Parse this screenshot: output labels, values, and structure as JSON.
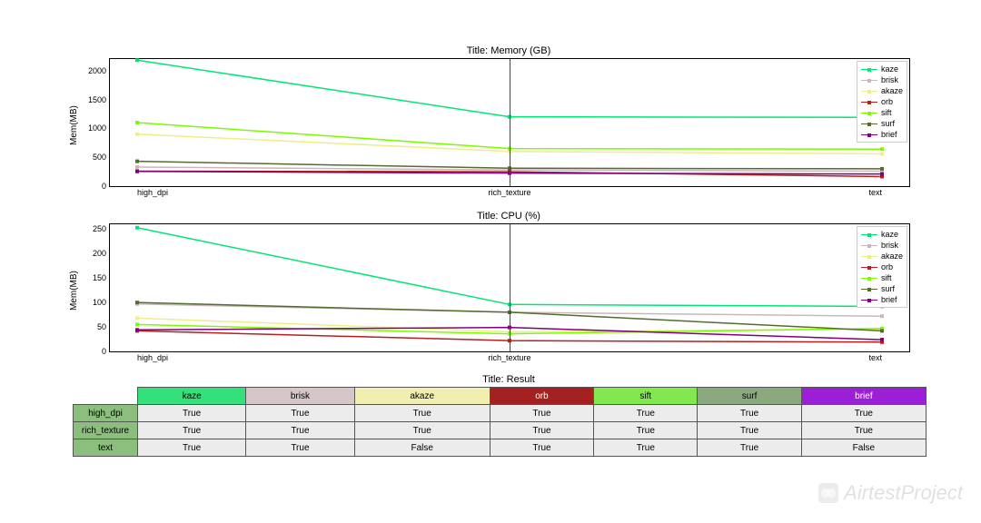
{
  "series": [
    {
      "name": "kaze",
      "color": "#00e676"
    },
    {
      "name": "brisk",
      "color": "#c8b8b8"
    },
    {
      "name": "akaze",
      "color": "#eeee88"
    },
    {
      "name": "orb",
      "color": "#b22222"
    },
    {
      "name": "sift",
      "color": "#7cfc00"
    },
    {
      "name": "surf",
      "color": "#556b2f"
    },
    {
      "name": "brief",
      "color": "#800080"
    }
  ],
  "categories": [
    "high_dpi",
    "rich_texture",
    "text"
  ],
  "chart1": {
    "title": "Title: Memory (GB)",
    "ylabel": "Mem(MB)",
    "ylim": [
      0,
      2200
    ],
    "yticks": [
      0,
      500,
      1000,
      1500,
      2000
    ],
    "values": {
      "kaze": [
        2180,
        1200,
        1190
      ],
      "brisk": [
        330,
        280,
        260
      ],
      "akaze": [
        900,
        600,
        560
      ],
      "orb": [
        260,
        250,
        165
      ],
      "sift": [
        1100,
        650,
        640
      ],
      "surf": [
        430,
        310,
        300
      ],
      "brief": [
        255,
        225,
        210
      ]
    }
  },
  "chart2": {
    "title": "Title: CPU (%)",
    "ylabel": "Mem(MB)",
    "ylim": [
      0,
      260
    ],
    "yticks": [
      0,
      50,
      100,
      150,
      200,
      250
    ],
    "values": {
      "kaze": [
        253,
        96,
        92
      ],
      "brisk": [
        97,
        80,
        72
      ],
      "akaze": [
        68,
        40,
        46
      ],
      "orb": [
        42,
        22,
        19
      ],
      "sift": [
        55,
        36,
        47
      ],
      "surf": [
        100,
        80,
        42
      ],
      "brief": [
        44,
        49,
        24
      ]
    }
  },
  "table": {
    "title": "Title: Result",
    "header_colors": {
      "kaze": "#33e07a",
      "brisk": "#d6c6c8",
      "akaze": "#f1efb0",
      "orb": "#a52020",
      "sift": "#83e84f",
      "surf": "#8ba97f",
      "brief": "#9b1fd6"
    },
    "row_header_color": "#8cbf7d",
    "cell_bg": "#ececec",
    "rows": [
      {
        "label": "high_dpi",
        "cells": [
          "True",
          "True",
          "True",
          "True",
          "True",
          "True",
          "True"
        ]
      },
      {
        "label": "rich_texture",
        "cells": [
          "True",
          "True",
          "True",
          "True",
          "True",
          "True",
          "True"
        ]
      },
      {
        "label": "text",
        "cells": [
          "True",
          "True",
          "False",
          "True",
          "True",
          "True",
          "False"
        ]
      }
    ]
  },
  "watermark": "AirtestProject"
}
